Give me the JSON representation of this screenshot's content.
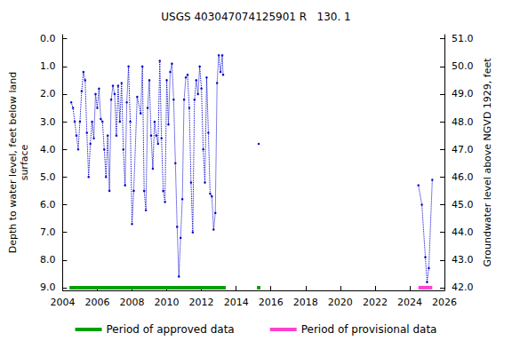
{
  "chart_data": {
    "type": "line",
    "title": "USGS 403047074125901 R   130. 1",
    "x_label": "",
    "y_label": "Depth to water level, feet below land\nsurface",
    "y2_label": "Groundwater level above NGVD 1929, feet",
    "xlim": [
      2004,
      2026
    ],
    "xticks": [
      2004,
      2006,
      2008,
      2010,
      2012,
      2014,
      2016,
      2018,
      2020,
      2022,
      2024,
      2026
    ],
    "ylim": [
      9.1,
      -0.15
    ],
    "yticks": [
      {
        "value": 0,
        "label": "0.0"
      },
      {
        "value": 1,
        "label": "1.0"
      },
      {
        "value": 2,
        "label": "2.0"
      },
      {
        "value": 3,
        "label": "3.0"
      },
      {
        "value": 4,
        "label": "4.0"
      },
      {
        "value": 5,
        "label": "5.0"
      },
      {
        "value": 6,
        "label": "6.0"
      },
      {
        "value": 7,
        "label": "7.0"
      },
      {
        "value": 8,
        "label": "8.0"
      },
      {
        "value": 9,
        "label": "9.0"
      }
    ],
    "y2lim": [
      41.9,
      51.15
    ],
    "y2ticks": [
      {
        "value": 42,
        "label": "42.0"
      },
      {
        "value": 43,
        "label": "43.0"
      },
      {
        "value": 44,
        "label": "44.0"
      },
      {
        "value": 45,
        "label": "45.0"
      },
      {
        "value": 46,
        "label": "46.0"
      },
      {
        "value": 47,
        "label": "47.0"
      },
      {
        "value": 48,
        "label": "48.0"
      },
      {
        "value": 49,
        "label": "49.0"
      },
      {
        "value": 50,
        "label": "50.0"
      },
      {
        "value": 51,
        "label": "51.0"
      }
    ],
    "grid": false,
    "legend": "bottom",
    "series": [
      {
        "color": "#0000cc",
        "line_style": "dotted",
        "marker": "circle",
        "x": [
          2004.5,
          2004.6,
          2004.7,
          2004.8,
          2004.9,
          2005.0,
          2005.1,
          2005.2,
          2005.3,
          2005.4,
          2005.5,
          2005.6,
          2005.7,
          2005.8,
          2005.9,
          2006.0,
          2006.1,
          2006.2,
          2006.3,
          2006.4,
          2006.5,
          2006.6,
          2006.7,
          2006.8,
          2006.9,
          2007.0,
          2007.1,
          2007.2,
          2007.3,
          2007.4,
          2007.5,
          2007.6,
          2007.7,
          2007.8,
          2007.9,
          2008.0,
          2008.1,
          2008.3,
          2008.5,
          2008.6,
          2008.7,
          2008.8,
          2008.9,
          2009.0,
          2009.1,
          2009.2,
          2009.3,
          2009.4,
          2009.5,
          2009.6,
          2009.7,
          2009.8,
          2009.9,
          2010.0,
          2010.1,
          2010.2,
          2010.3,
          2010.4,
          2010.5,
          2010.6,
          2010.7,
          2010.8,
          2010.9,
          2011.0,
          2011.1,
          2011.2,
          2011.3,
          2011.4,
          2011.5,
          2011.6,
          2011.7,
          2011.8,
          2011.9,
          2012.0,
          2012.1,
          2012.2,
          2012.3,
          2012.4,
          2012.5,
          2012.6,
          2012.7,
          2012.8,
          2012.9,
          2013.0,
          2013.1,
          2013.2,
          2013.25,
          2014.0,
          2015.3,
          2016.0,
          2024.5,
          2024.7,
          2024.9,
          2025.0,
          2025.1,
          2025.3
        ],
        "values": [
          2.3,
          2.5,
          3.0,
          3.5,
          4.0,
          3.0,
          1.9,
          1.2,
          1.5,
          3.4,
          5.0,
          3.8,
          3.0,
          3.6,
          2.0,
          2.5,
          1.8,
          2.9,
          3.0,
          4.0,
          5.0,
          3.5,
          5.5,
          2.2,
          1.7,
          2.0,
          3.5,
          1.7,
          3.0,
          1.6,
          4.0,
          5.3,
          2.3,
          1.0,
          3.0,
          6.7,
          5.5,
          2.1,
          2.7,
          1.0,
          5.5,
          6.2,
          2.5,
          1.5,
          3.5,
          4.7,
          3.0,
          3.5,
          3.8,
          0.8,
          3.6,
          5.5,
          5.9,
          1.5,
          3.1,
          1.2,
          0.9,
          2.2,
          4.5,
          6.8,
          8.6,
          7.2,
          5.8,
          2.2,
          1.4,
          1.3,
          2.5,
          5.2,
          7.0,
          2.2,
          1.5,
          2.0,
          1.0,
          1.8,
          4.0,
          5.2,
          1.4,
          3.4,
          5.6,
          5.7,
          6.9,
          6.3,
          1.6,
          0.6,
          1.2,
          0.6,
          1.3,
          null,
          3.8,
          null,
          5.3,
          6.0,
          7.9,
          8.8,
          8.3,
          5.1
        ]
      },
      {
        "name": "Period of approved data",
        "color": "#00a000",
        "line_style": "solid",
        "marker": "none",
        "x": [
          2004.4,
          2013.4,
          2014.3,
          2015.2,
          2015.4
        ],
        "values": [
          9.0,
          9.0,
          null,
          9.0,
          9.0
        ]
      },
      {
        "name": "Period of provisional data",
        "color": "#ff40d0",
        "line_style": "solid",
        "marker": "none",
        "x": [
          2024.5,
          2025.3
        ],
        "values": [
          9.0,
          9.0
        ]
      }
    ]
  }
}
